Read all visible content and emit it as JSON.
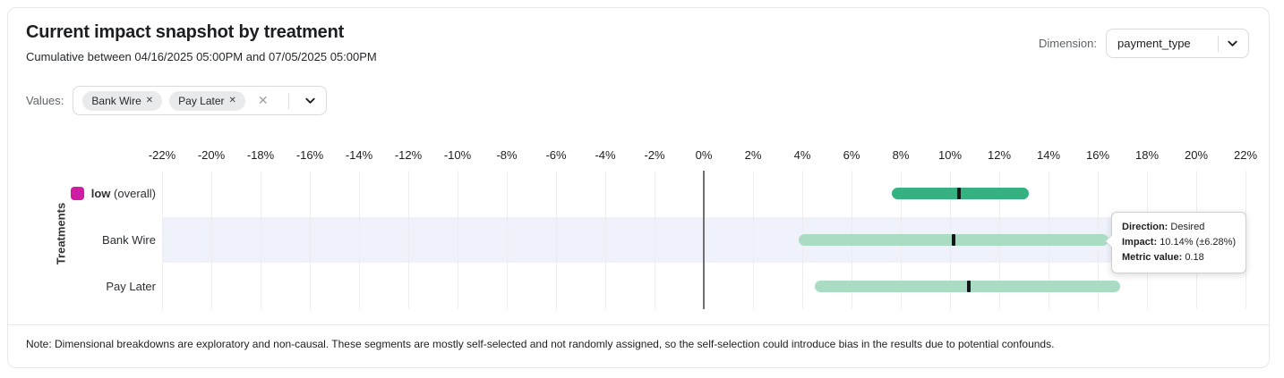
{
  "header": {
    "title": "Current impact snapshot by treatment",
    "subtitle": "Cumulative between 04/16/2025 05:00PM and 07/05/2025 05:00PM",
    "dimension_label": "Dimension:",
    "dimension_value": "payment_type"
  },
  "filters": {
    "values_label": "Values:",
    "chips": [
      {
        "label": "Bank Wire"
      },
      {
        "label": "Pay Later"
      }
    ],
    "clear_icon": "✕",
    "chip_remove_icon": "✕"
  },
  "chart_data": {
    "type": "range-bar",
    "ylabel": "Treatments",
    "xlim": [
      -22,
      22
    ],
    "tick_unit": "%",
    "ticks": [
      -22,
      -20,
      -18,
      -16,
      -14,
      -12,
      -10,
      -8,
      -6,
      -4,
      -2,
      0,
      2,
      4,
      6,
      8,
      10,
      12,
      14,
      16,
      18,
      20,
      22
    ],
    "grid": true,
    "marker_color": "#141519",
    "highlight_color": "#eff1fb",
    "rows": [
      {
        "name": "low-overall",
        "label_bold": "low",
        "label_normal": " (overall)",
        "swatch_color": "#cf1da4",
        "bar_color": "#36b181",
        "impact": 10.36,
        "ci_low": 7.64,
        "ci_high": 13.2,
        "highlighted": false
      },
      {
        "name": "bank-wire",
        "label_normal": "Bank Wire",
        "bar_color": "#a9dcc2",
        "impact": 10.14,
        "ci_low": 3.86,
        "ci_high": 16.42,
        "highlighted": true
      },
      {
        "name": "pay-later",
        "label_normal": "Pay Later",
        "bar_color": "#a9dcc2",
        "impact": 10.76,
        "ci_low": 4.51,
        "ci_high": 16.91,
        "highlighted": false
      }
    ]
  },
  "tooltip": {
    "direction_label": "Direction:",
    "direction_value": "Desired",
    "impact_label": "Impact:",
    "impact_value": "10.14% (±6.28%)",
    "metric_label": "Metric value:",
    "metric_value": "0.18"
  },
  "note": "Note: Dimensional breakdowns are exploratory and non-causal. These segments are mostly self-selected and not randomly assigned, so the self-selection could introduce bias in the results due to potential confounds."
}
